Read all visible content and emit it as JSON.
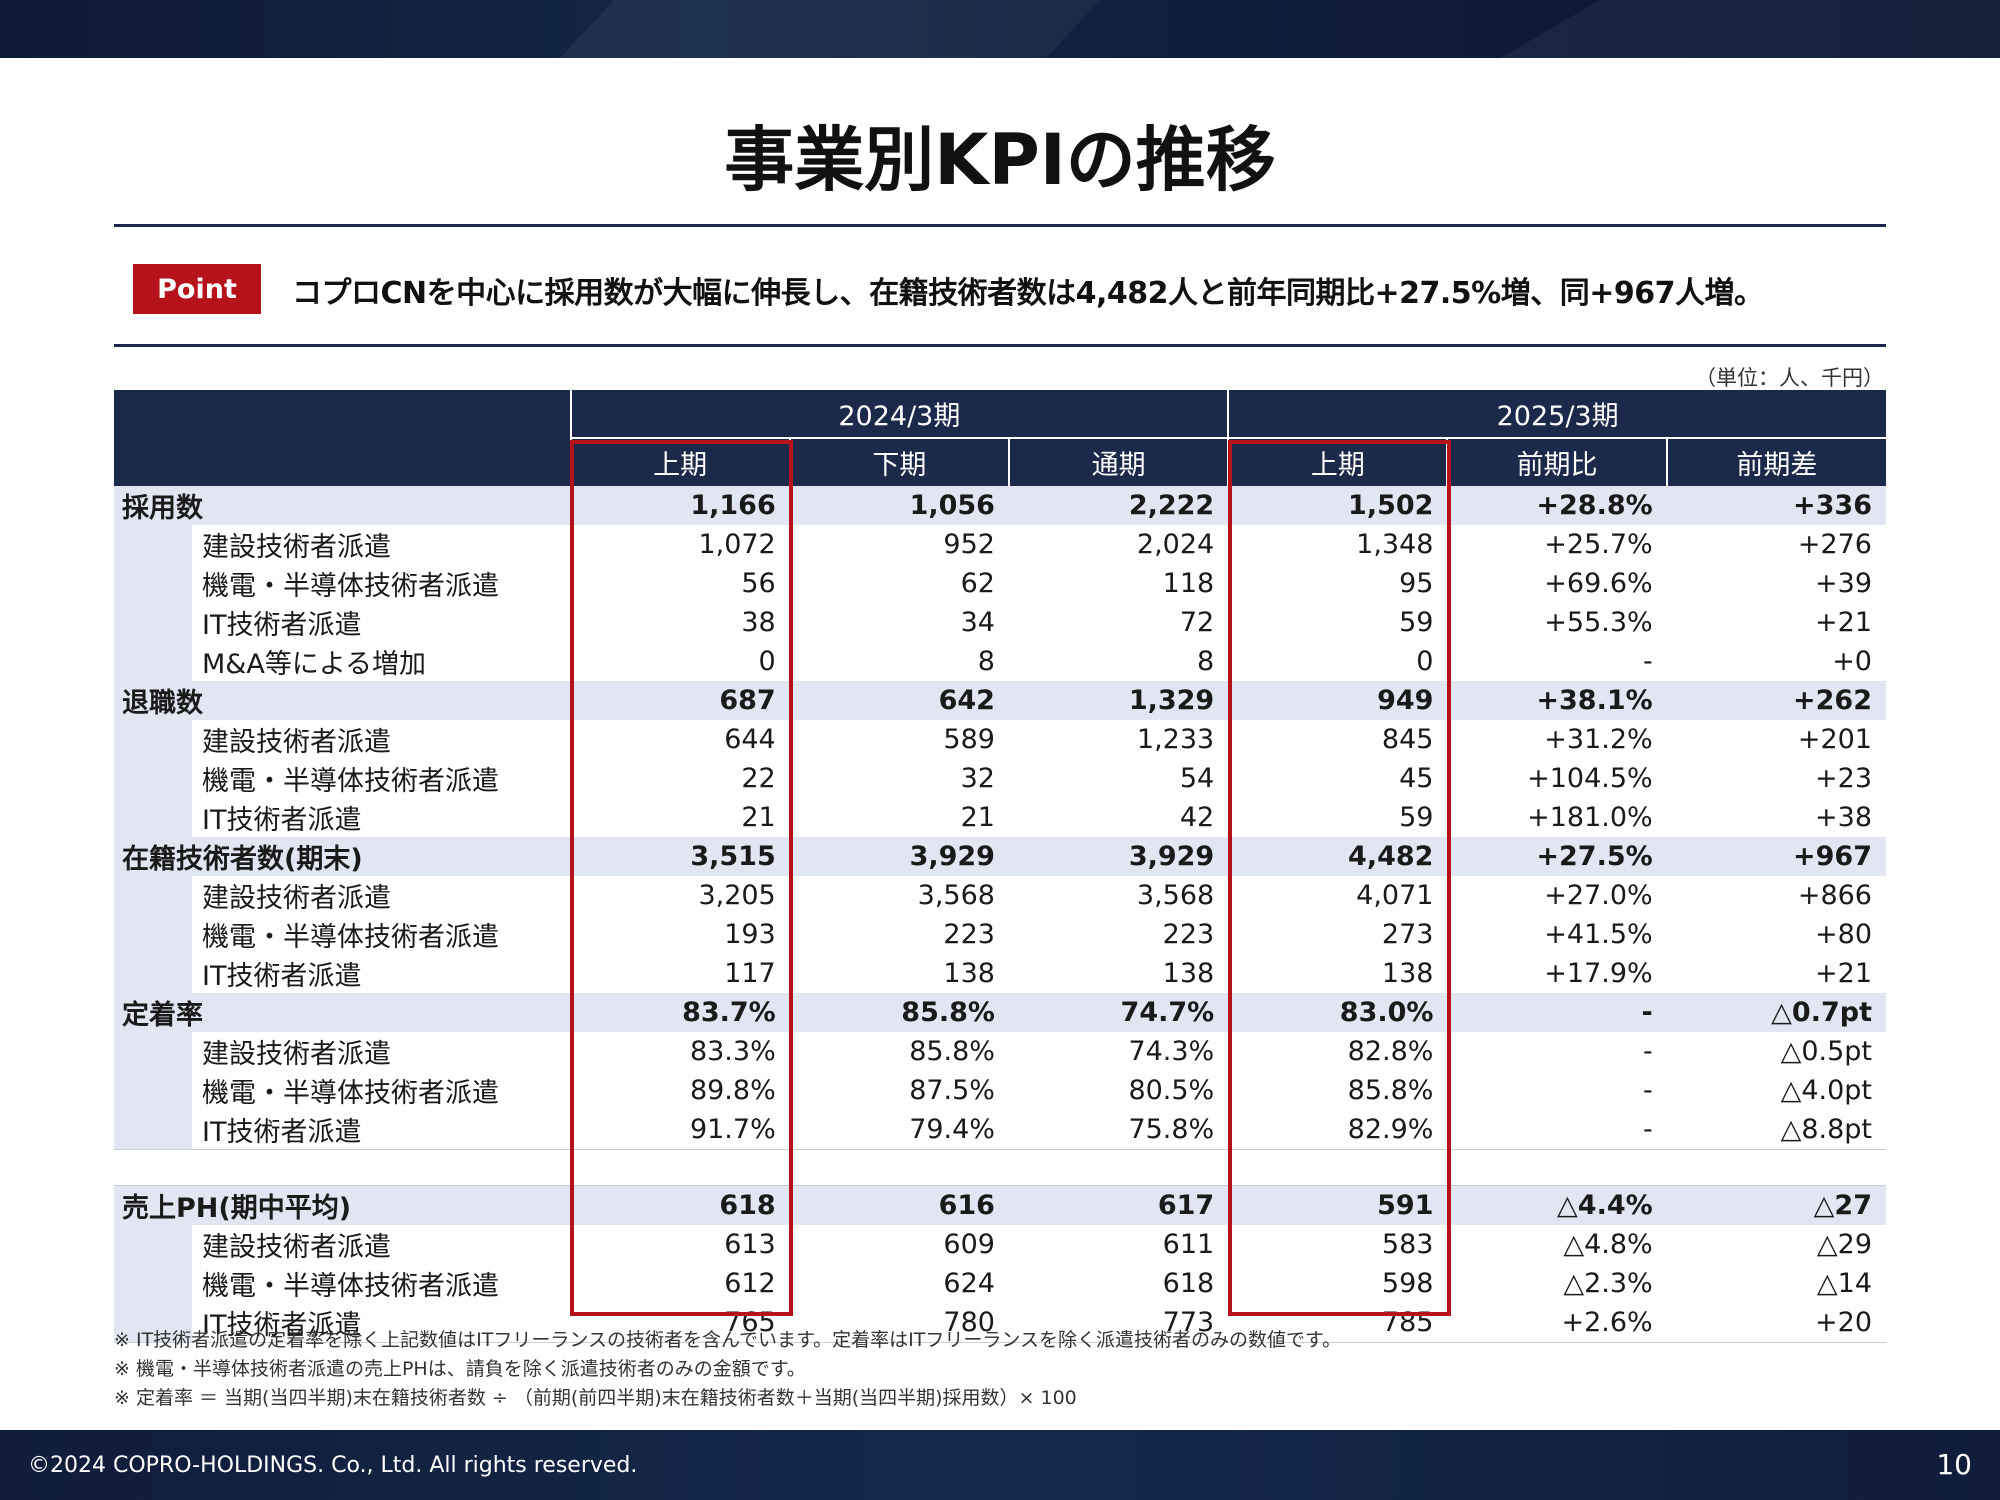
{
  "title": "事業別KPIの推移",
  "point": {
    "badge": "Point",
    "text": "コプロCNを中心に採用数が大幅に伸長し、在籍技術者数は4,482人と前年同期比+27.5%増、同+967人増。"
  },
  "unit_note": "（単位：人、千円）",
  "table": {
    "period_headers": [
      "2024/3期",
      "2025/3期"
    ],
    "sub_headers": [
      "上期",
      "下期",
      "通期",
      "上期",
      "前期比",
      "前期差"
    ],
    "rows": [
      {
        "type": "main",
        "label": "採用数",
        "values": [
          "1,166",
          "1,056",
          "2,222",
          "1,502",
          "+28.8%",
          "+336"
        ]
      },
      {
        "type": "sub",
        "label": "建設技術者派遣",
        "values": [
          "1,072",
          "952",
          "2,024",
          "1,348",
          "+25.7%",
          "+276"
        ]
      },
      {
        "type": "sub",
        "label": "機電・半導体技術者派遣",
        "values": [
          "56",
          "62",
          "118",
          "95",
          "+69.6%",
          "+39"
        ]
      },
      {
        "type": "sub",
        "label": "IT技術者派遣",
        "values": [
          "38",
          "34",
          "72",
          "59",
          "+55.3%",
          "+21"
        ]
      },
      {
        "type": "sub",
        "label": "M&A等による増加",
        "values": [
          "0",
          "8",
          "8",
          "0",
          "-",
          "+0"
        ]
      },
      {
        "type": "main",
        "label": "退職数",
        "values": [
          "687",
          "642",
          "1,329",
          "949",
          "+38.1%",
          "+262"
        ]
      },
      {
        "type": "sub",
        "label": "建設技術者派遣",
        "values": [
          "644",
          "589",
          "1,233",
          "845",
          "+31.2%",
          "+201"
        ]
      },
      {
        "type": "sub",
        "label": "機電・半導体技術者派遣",
        "values": [
          "22",
          "32",
          "54",
          "45",
          "+104.5%",
          "+23"
        ]
      },
      {
        "type": "sub",
        "label": "IT技術者派遣",
        "values": [
          "21",
          "21",
          "42",
          "59",
          "+181.0%",
          "+38"
        ]
      },
      {
        "type": "main",
        "label": "在籍技術者数(期末)",
        "values": [
          "3,515",
          "3,929",
          "3,929",
          "4,482",
          "+27.5%",
          "+967"
        ]
      },
      {
        "type": "sub",
        "label": "建設技術者派遣",
        "values": [
          "3,205",
          "3,568",
          "3,568",
          "4,071",
          "+27.0%",
          "+866"
        ]
      },
      {
        "type": "sub",
        "label": "機電・半導体技術者派遣",
        "values": [
          "193",
          "223",
          "223",
          "273",
          "+41.5%",
          "+80"
        ]
      },
      {
        "type": "sub",
        "label": "IT技術者派遣",
        "values": [
          "117",
          "138",
          "138",
          "138",
          "+17.9%",
          "+21"
        ]
      },
      {
        "type": "main",
        "label": "定着率",
        "values": [
          "83.7%",
          "85.8%",
          "74.7%",
          "83.0%",
          "-",
          "△0.7pt"
        ]
      },
      {
        "type": "sub",
        "label": "建設技術者派遣",
        "values": [
          "83.3%",
          "85.8%",
          "74.3%",
          "82.8%",
          "-",
          "△0.5pt"
        ]
      },
      {
        "type": "sub",
        "label": "機電・半導体技術者派遣",
        "values": [
          "89.8%",
          "87.5%",
          "80.5%",
          "85.8%",
          "-",
          "△4.0pt"
        ]
      },
      {
        "type": "sub",
        "label": "IT技術者派遣",
        "values": [
          "91.7%",
          "79.4%",
          "75.8%",
          "82.9%",
          "-",
          "△8.8pt"
        ]
      },
      {
        "type": "gap",
        "label": "",
        "values": [
          "",
          "",
          "",
          "",
          "",
          ""
        ]
      },
      {
        "type": "main",
        "label": "売上PH(期中平均)",
        "values": [
          "618",
          "616",
          "617",
          "591",
          "△4.4%",
          "△27"
        ]
      },
      {
        "type": "sub",
        "label": "建設技術者派遣",
        "values": [
          "613",
          "609",
          "611",
          "583",
          "△4.8%",
          "△29"
        ]
      },
      {
        "type": "sub",
        "label": "機電・半導体技術者派遣",
        "values": [
          "612",
          "624",
          "618",
          "598",
          "△2.3%",
          "△14"
        ]
      },
      {
        "type": "sub",
        "label": "IT技術者派遣",
        "values": [
          "765",
          "780",
          "773",
          "785",
          "+2.6%",
          "+20"
        ]
      }
    ]
  },
  "notes": [
    "※ IT技術者派遣の定着率を除く上記数値はITフリーランスの技術者を含んでいます。定着率はITフリーランスを除く派遣技術者のみの数値です。",
    "※ 機電・半導体技術者派遣の売上PHは、請負を除く派遣技術者のみの金額です。",
    "※ 定着率 ＝ 当期(当四半期)末在籍技術者数 ÷ （前期(前四半期)末在籍技術者数＋当期(当四半期)採用数）× 100"
  ],
  "footer": {
    "copyright": "©2024 COPRO-HOLDINGS. Co., Ltd. All rights reserved.",
    "page_number": "10"
  },
  "colors": {
    "navy": "#1b2a4a",
    "accent_red": "#b5121b",
    "band": "#e1e6f2"
  }
}
